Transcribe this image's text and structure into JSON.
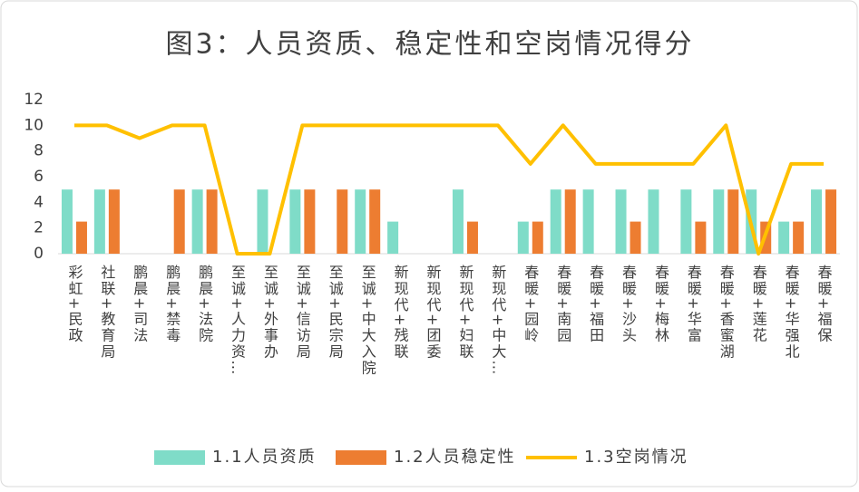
{
  "chart_data": {
    "type": "bar_line",
    "title": "图3：人员资质、稳定性和空岗情况得分",
    "categories": [
      "彩虹+民政",
      "社联+教育局",
      "鹏晨+司法",
      "鹏晨+禁毒",
      "鹏晨+法院",
      "至诚+人力资…",
      "至诚+外事办",
      "至诚+信访局",
      "至诚+民宗局",
      "至诚+中大入院",
      "新现代+残联",
      "新现代+团委",
      "新现代+妇联",
      "新现代+中大…",
      "春暖+园岭",
      "春暖+南园",
      "春暖+福田",
      "春暖+沙头",
      "春暖+梅林",
      "春暖+华富",
      "春暖+香蜜湖",
      "春暖+莲花",
      "春暖+华强北",
      "春暖+福保"
    ],
    "series": [
      {
        "name": "1.1人员资质",
        "type": "bar",
        "color": "#7fdcc8",
        "values": [
          5,
          5,
          0,
          0,
          5,
          0,
          5,
          5,
          0,
          5,
          2.5,
          0,
          5,
          0,
          2.5,
          5,
          5,
          5,
          5,
          5,
          5,
          5,
          2.5,
          5
        ]
      },
      {
        "name": "1.2人员稳定性",
        "type": "bar",
        "color": "#ed7d31",
        "values": [
          2.5,
          5,
          0,
          5,
          5,
          0,
          0,
          5,
          5,
          5,
          0,
          0,
          2.5,
          0,
          2.5,
          5,
          0,
          2.5,
          0,
          2.5,
          5,
          2.5,
          2.5,
          5
        ]
      },
      {
        "name": "1.3空岗情况",
        "type": "line",
        "color": "#ffc000",
        "values": [
          10,
          10,
          9,
          10,
          10,
          0,
          0,
          10,
          10,
          10,
          10,
          10,
          10,
          10,
          7,
          10,
          7,
          7,
          7,
          7,
          10,
          0,
          7,
          7
        ]
      }
    ],
    "ylim": [
      0,
      12
    ],
    "yticks": [
      0,
      2,
      4,
      6,
      8,
      10,
      12
    ],
    "grid": false,
    "legend": "bottom"
  }
}
